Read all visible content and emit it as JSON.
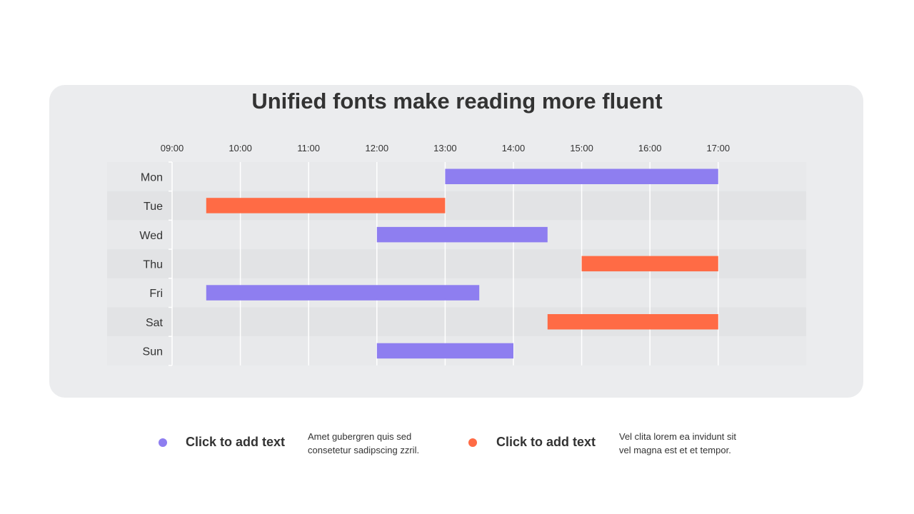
{
  "chart_data": {
    "type": "bar",
    "orientation": "horizontal-range",
    "title": "Unified fonts make reading more fluent",
    "x_ticks": [
      "09:00",
      "10:00",
      "11:00",
      "12:00",
      "13:00",
      "14:00",
      "15:00",
      "16:00",
      "17:00"
    ],
    "xlim": [
      "09:00",
      "18:15"
    ],
    "categories": [
      "Mon",
      "Tue",
      "Wed",
      "Thu",
      "Fri",
      "Sat",
      "Sun"
    ],
    "ranges": [
      {
        "day": "Mon",
        "start": "13:00",
        "end": "17:00",
        "color": "#8e7ef0"
      },
      {
        "day": "Tue",
        "start": "09:30",
        "end": "13:00",
        "color": "#ff6b45"
      },
      {
        "day": "Wed",
        "start": "12:00",
        "end": "14:30",
        "color": "#8e7ef0"
      },
      {
        "day": "Thu",
        "start": "15:00",
        "end": "17:00",
        "color": "#ff6b45"
      },
      {
        "day": "Fri",
        "start": "09:30",
        "end": "13:30",
        "color": "#8e7ef0"
      },
      {
        "day": "Sat",
        "start": "14:30",
        "end": "17:00",
        "color": "#ff6b45"
      },
      {
        "day": "Sun",
        "start": "12:00",
        "end": "14:00",
        "color": "#8e7ef0"
      }
    ],
    "grid": true,
    "row_colors": [
      "#e8e9eb",
      "#e2e3e5"
    ]
  },
  "legend": [
    {
      "label": "Click to add text",
      "color": "#8e7ef0",
      "description": "Amet gubergren  quis sed\nconsetetur  sadipscing  zzril."
    },
    {
      "label": "Click to add text",
      "color": "#ff6b45",
      "description": "Vel clita lorem ea invidunt  sit\nvel magna est et et tempor."
    }
  ]
}
